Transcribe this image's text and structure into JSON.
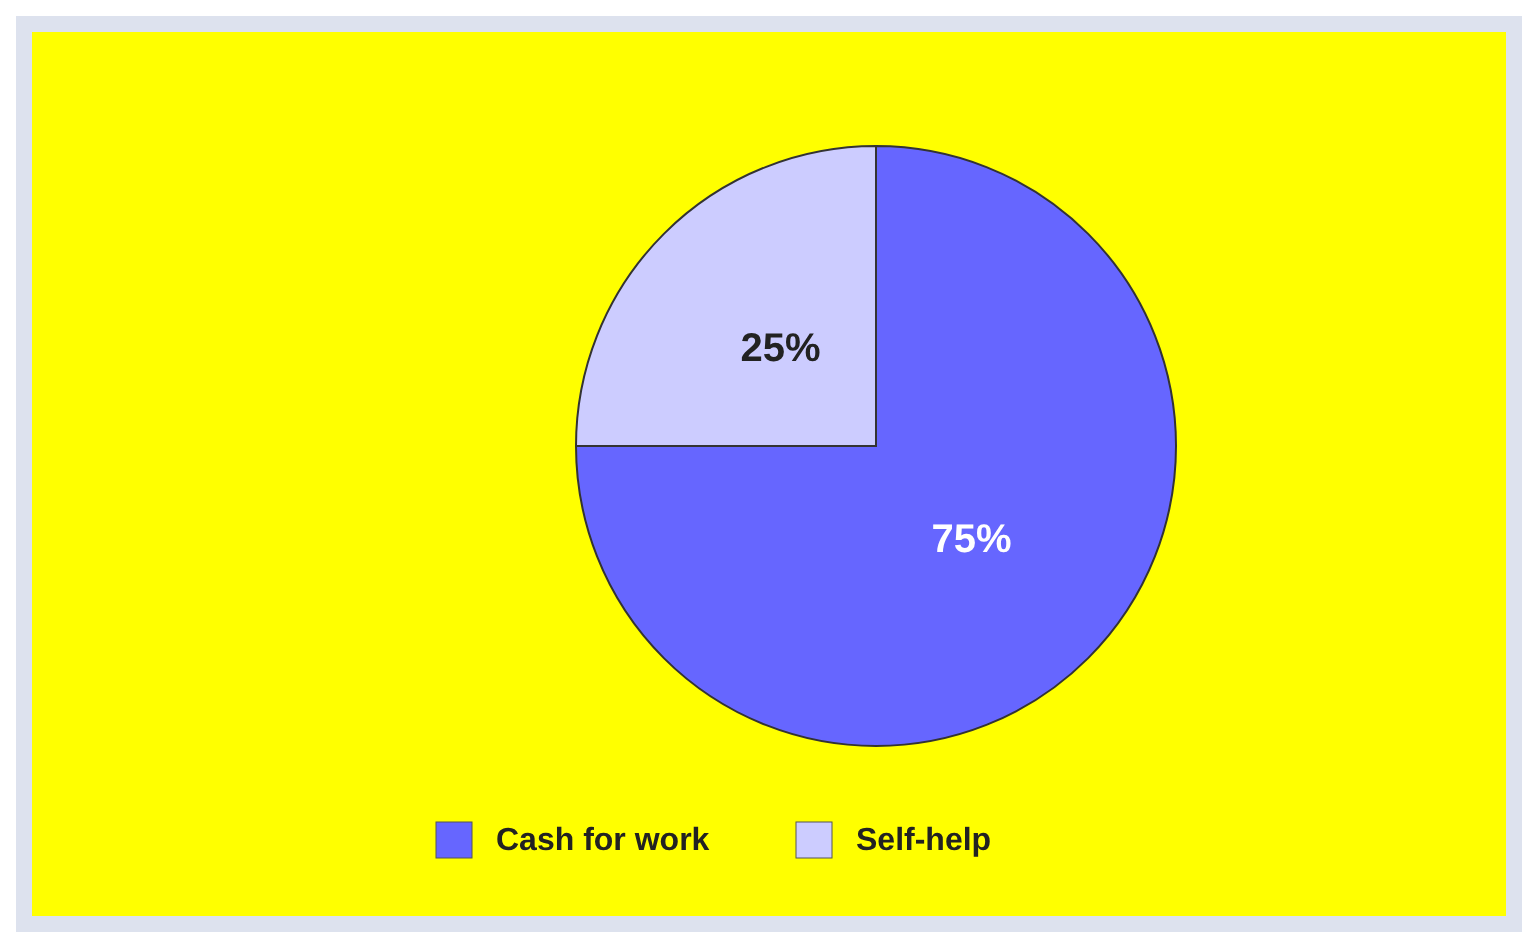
{
  "chart_data": {
    "type": "pie",
    "categories": [
      "Cash for work",
      "Self-help"
    ],
    "values": [
      75,
      25
    ],
    "colors": [
      "#6666ff",
      "#ccccff"
    ],
    "value_labels": [
      "75%",
      "25%"
    ],
    "legend": "bottom"
  }
}
